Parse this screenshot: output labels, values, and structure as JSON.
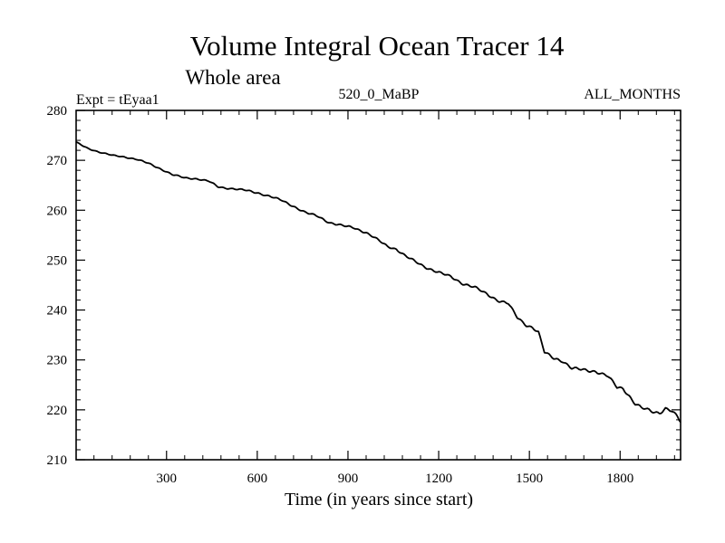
{
  "chart_data": {
    "type": "line",
    "title": "Volume Integral Ocean Tracer 14",
    "subtitle": "Whole area",
    "experiment": "Expt = tEyaa1",
    "run": "520_0_MaBP",
    "period": "ALL_MONTHS",
    "xlabel": "Time (in years since start)",
    "ylabel": "",
    "xlim": [
      1,
      2000
    ],
    "ylim": [
      210,
      280
    ],
    "x_ticks": [
      300,
      600,
      900,
      1200,
      1500,
      1800
    ],
    "y_ticks": [
      210,
      220,
      230,
      240,
      250,
      260,
      270,
      280
    ],
    "grid": false,
    "series": [
      {
        "name": "Tracer 14",
        "x": [
          1,
          40,
          80,
          120,
          160,
          200,
          240,
          280,
          320,
          360,
          400,
          440,
          470,
          490,
          520,
          560,
          600,
          640,
          680,
          720,
          760,
          800,
          840,
          880,
          920,
          960,
          1000,
          1030,
          1060,
          1090,
          1120,
          1160,
          1200,
          1240,
          1280,
          1320,
          1360,
          1400,
          1430,
          1460,
          1490,
          1510,
          1530,
          1550,
          1580,
          1610,
          1640,
          1680,
          1720,
          1760,
          1790,
          1810,
          1830,
          1850,
          1870,
          1890,
          1910,
          1930,
          1950,
          1970,
          1990,
          2000
        ],
        "y": [
          273.6,
          272.4,
          271.6,
          271.0,
          270.7,
          270.2,
          269.4,
          268.3,
          267.1,
          266.5,
          266.3,
          265.8,
          264.7,
          264.5,
          264.3,
          264.0,
          263.5,
          262.8,
          262.0,
          260.8,
          259.5,
          258.8,
          257.5,
          256.9,
          256.5,
          255.5,
          254.0,
          252.8,
          252.2,
          250.8,
          249.8,
          248.5,
          247.5,
          246.7,
          245.3,
          244.5,
          243.2,
          241.8,
          241.3,
          238.5,
          237.0,
          236.5,
          235.5,
          231.5,
          230.4,
          229.8,
          228.3,
          228.0,
          227.7,
          226.7,
          224.5,
          224.3,
          222.8,
          221.2,
          220.4,
          220.0,
          219.6,
          219.4,
          220.3,
          219.8,
          218.5,
          217.5
        ]
      }
    ]
  }
}
